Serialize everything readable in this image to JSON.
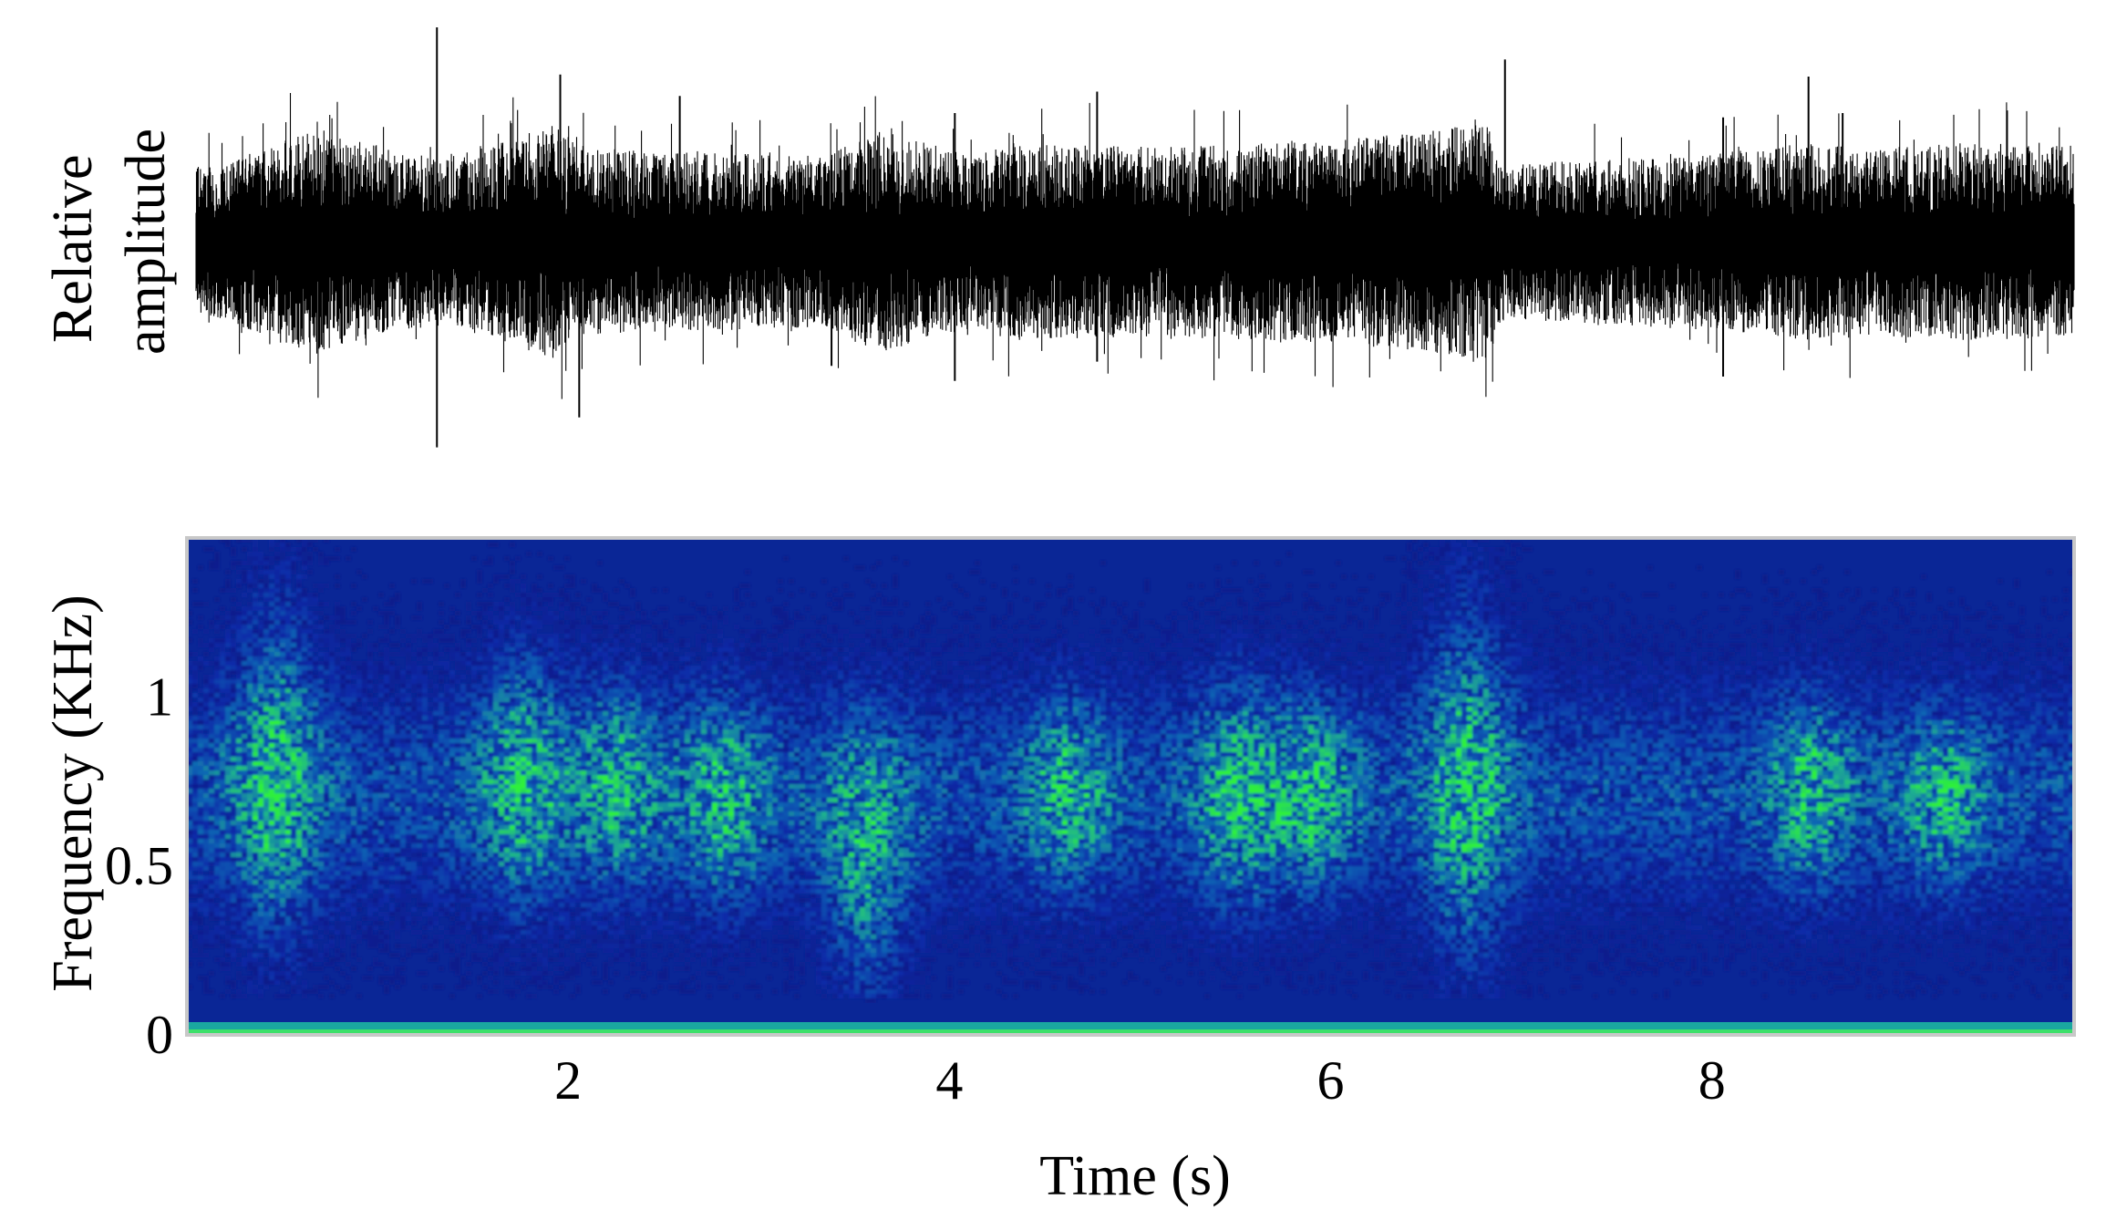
{
  "chart_data": [
    {
      "type": "line",
      "panel": "waveform",
      "ylabel_lines": [
        "Relative",
        "amplitude"
      ],
      "xlim": [
        0,
        9.9
      ],
      "ylim": [
        -1,
        1
      ],
      "grid": false,
      "series": [
        {
          "x": [
            0.1,
            0.6,
            1.3,
            1.9,
            2.0,
            2.4,
            3.3,
            3.6,
            4.1,
            4.3,
            5.1,
            6.1,
            6.8,
            6.9,
            8.1,
            8.5,
            8.9,
            9.3,
            9.9
          ],
          "envelope": [
            0.35,
            0.52,
            0.38,
            0.55,
            0.45,
            0.42,
            0.4,
            0.52,
            0.4,
            0.46,
            0.44,
            0.48,
            0.55,
            0.36,
            0.42,
            0.46,
            0.44,
            0.46,
            0.45
          ],
          "spikes": [
            {
              "x": 1.27,
              "top": 1.0,
              "bottom": -0.96
            },
            {
              "x": 1.92,
              "top": 0.78,
              "bottom": 0.0
            },
            {
              "x": 2.02,
              "top": 0.0,
              "bottom": -0.82
            },
            {
              "x": 2.55,
              "top": 0.68,
              "bottom": 0.0
            },
            {
              "x": 3.35,
              "top": 0.0,
              "bottom": -0.58
            },
            {
              "x": 4.0,
              "top": 0.6,
              "bottom": -0.65
            },
            {
              "x": 4.75,
              "top": 0.7,
              "bottom": -0.56
            },
            {
              "x": 6.9,
              "top": 0.85,
              "bottom": 0.0
            },
            {
              "x": 8.05,
              "top": 0.58,
              "bottom": -0.63
            },
            {
              "x": 8.5,
              "top": 0.77,
              "bottom": 0.0
            },
            {
              "x": 8.68,
              "top": 0.6,
              "bottom": 0.0
            }
          ]
        }
      ]
    },
    {
      "type": "heatmap",
      "panel": "spectrogram",
      "xlabel": "Time (s)",
      "ylabel": "Frequency (KHz)",
      "xlim": [
        0,
        9.9
      ],
      "ylim": [
        0,
        1.47
      ],
      "xticks": [
        2,
        4,
        6,
        8
      ],
      "yticks": [
        0,
        0.5,
        1
      ],
      "ytick_labels": [
        "0",
        "0.5",
        "1"
      ],
      "colormap": [
        "#06106e",
        "#0a2aa8",
        "#1065b4",
        "#1eb28e",
        "#2ef03a"
      ],
      "energy_bursts": [
        {
          "t": 0.45,
          "f_low": 0.35,
          "f_high": 1.25,
          "level": 0.95
        },
        {
          "t": 1.75,
          "f_low": 0.45,
          "f_high": 1.1,
          "level": 0.85
        },
        {
          "t": 2.25,
          "f_low": 0.5,
          "f_high": 1.0,
          "level": 0.75
        },
        {
          "t": 2.8,
          "f_low": 0.45,
          "f_high": 0.95,
          "level": 0.8
        },
        {
          "t": 3.55,
          "f_low": 0.15,
          "f_high": 0.85,
          "level": 0.85
        },
        {
          "t": 4.6,
          "f_low": 0.5,
          "f_high": 0.95,
          "level": 0.8
        },
        {
          "t": 5.5,
          "f_low": 0.45,
          "f_high": 1.0,
          "level": 0.85
        },
        {
          "t": 5.9,
          "f_low": 0.5,
          "f_high": 0.95,
          "level": 0.8
        },
        {
          "t": 6.7,
          "f_low": 0.25,
          "f_high": 1.25,
          "level": 0.95
        },
        {
          "t": 8.5,
          "f_low": 0.5,
          "f_high": 0.95,
          "level": 0.8
        },
        {
          "t": 9.2,
          "f_low": 0.5,
          "f_high": 0.9,
          "level": 0.75
        }
      ]
    }
  ]
}
